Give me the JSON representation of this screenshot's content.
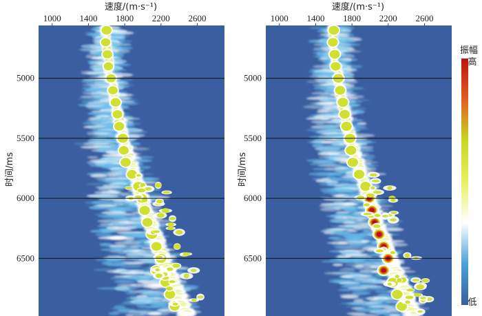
{
  "chart_data": [
    {
      "type": "heatmap",
      "xlabel": "速度/(m·s⁻¹)",
      "ylabel": "时间/ms",
      "xticks": [
        1000,
        1400,
        1800,
        2200,
        2600
      ],
      "yticks": [
        5000,
        5500,
        6000,
        6500
      ],
      "xlim": [
        850,
        2900
      ],
      "ylim": [
        4560,
        6980
      ],
      "horizontal_lines": [
        5000,
        5500,
        6000,
        6500
      ],
      "background_color": "#3a5ea0",
      "velocity_trend": [
        [
          4560,
          1580
        ],
        [
          5000,
          1640
        ],
        [
          5500,
          1780
        ],
        [
          6000,
          1990
        ],
        [
          6500,
          2220
        ],
        [
          6980,
          2480
        ]
      ],
      "energy_blobs": [
        {
          "t": 4600,
          "v": 1600,
          "a": 0.8
        },
        {
          "t": 4700,
          "v": 1590,
          "a": 0.7
        },
        {
          "t": 4800,
          "v": 1610,
          "a": 0.75
        },
        {
          "t": 4900,
          "v": 1620,
          "a": 0.7
        },
        {
          "t": 5000,
          "v": 1650,
          "a": 0.7
        },
        {
          "t": 5100,
          "v": 1670,
          "a": 0.7
        },
        {
          "t": 5200,
          "v": 1700,
          "a": 0.8
        },
        {
          "t": 5300,
          "v": 1720,
          "a": 0.75
        },
        {
          "t": 5400,
          "v": 1740,
          "a": 0.8
        },
        {
          "t": 5500,
          "v": 1780,
          "a": 0.85
        },
        {
          "t": 5600,
          "v": 1790,
          "a": 0.8
        },
        {
          "t": 5700,
          "v": 1810,
          "a": 0.85
        },
        {
          "t": 5800,
          "v": 1880,
          "a": 0.85
        },
        {
          "t": 5900,
          "v": 1950,
          "a": 0.85
        },
        {
          "t": 6000,
          "v": 1990,
          "a": 0.85
        },
        {
          "t": 6100,
          "v": 2020,
          "a": 0.9
        },
        {
          "t": 6200,
          "v": 2050,
          "a": 0.85
        },
        {
          "t": 6300,
          "v": 2100,
          "a": 0.9
        },
        {
          "t": 6400,
          "v": 2150,
          "a": 0.85
        },
        {
          "t": 6500,
          "v": 2200,
          "a": 0.9
        },
        {
          "t": 6600,
          "v": 2150,
          "a": 0.85
        },
        {
          "t": 6700,
          "v": 2250,
          "a": 0.85
        },
        {
          "t": 6800,
          "v": 2300,
          "a": 0.85
        },
        {
          "t": 6900,
          "v": 2350,
          "a": 0.8
        }
      ]
    },
    {
      "type": "heatmap",
      "xlabel": "速度/(m·s⁻¹)",
      "ylabel": "时间/ms",
      "xticks": [
        1000,
        1400,
        1800,
        2200,
        2600
      ],
      "yticks": [
        5000,
        5500,
        6000,
        6500
      ],
      "xlim": [
        850,
        2900
      ],
      "ylim": [
        4560,
        6980
      ],
      "horizontal_lines": [
        5000,
        5500,
        6000,
        6500
      ],
      "background_color": "#3a5ea0",
      "velocity_trend": [
        [
          4560,
          1580
        ],
        [
          5000,
          1640
        ],
        [
          5500,
          1780
        ],
        [
          6000,
          1990
        ],
        [
          6500,
          2220
        ],
        [
          6980,
          2480
        ]
      ],
      "energy_blobs": [
        {
          "t": 4600,
          "v": 1600,
          "a": 0.85
        },
        {
          "t": 4700,
          "v": 1590,
          "a": 0.8
        },
        {
          "t": 4800,
          "v": 1610,
          "a": 0.85
        },
        {
          "t": 4900,
          "v": 1620,
          "a": 0.8
        },
        {
          "t": 5000,
          "v": 1650,
          "a": 0.85
        },
        {
          "t": 5100,
          "v": 1670,
          "a": 0.85
        },
        {
          "t": 5200,
          "v": 1700,
          "a": 0.9
        },
        {
          "t": 5300,
          "v": 1720,
          "a": 0.85
        },
        {
          "t": 5400,
          "v": 1740,
          "a": 0.9
        },
        {
          "t": 5500,
          "v": 1780,
          "a": 0.9
        },
        {
          "t": 5600,
          "v": 1790,
          "a": 0.9
        },
        {
          "t": 5700,
          "v": 1810,
          "a": 0.9
        },
        {
          "t": 5800,
          "v": 1880,
          "a": 0.9
        },
        {
          "t": 5900,
          "v": 1950,
          "a": 0.92
        },
        {
          "t": 6000,
          "v": 1990,
          "a": 0.95
        },
        {
          "t": 6100,
          "v": 2020,
          "a": 1.0
        },
        {
          "t": 6200,
          "v": 2050,
          "a": 0.95
        },
        {
          "t": 6300,
          "v": 2100,
          "a": 0.98
        },
        {
          "t": 6400,
          "v": 2150,
          "a": 1.0
        },
        {
          "t": 6500,
          "v": 2200,
          "a": 0.95
        },
        {
          "t": 6600,
          "v": 2150,
          "a": 0.95
        },
        {
          "t": 6700,
          "v": 2250,
          "a": 0.9
        },
        {
          "t": 6800,
          "v": 2300,
          "a": 0.9
        },
        {
          "t": 6900,
          "v": 2350,
          "a": 0.85
        }
      ]
    }
  ],
  "colorbar": {
    "title": "振幅",
    "high_label": "高",
    "low_label": "低",
    "colors": [
      "#3a5ea0",
      "#4aa0d8",
      "#ffffff",
      "#e8f060",
      "#c8d820",
      "#e06020",
      "#c01010"
    ]
  }
}
